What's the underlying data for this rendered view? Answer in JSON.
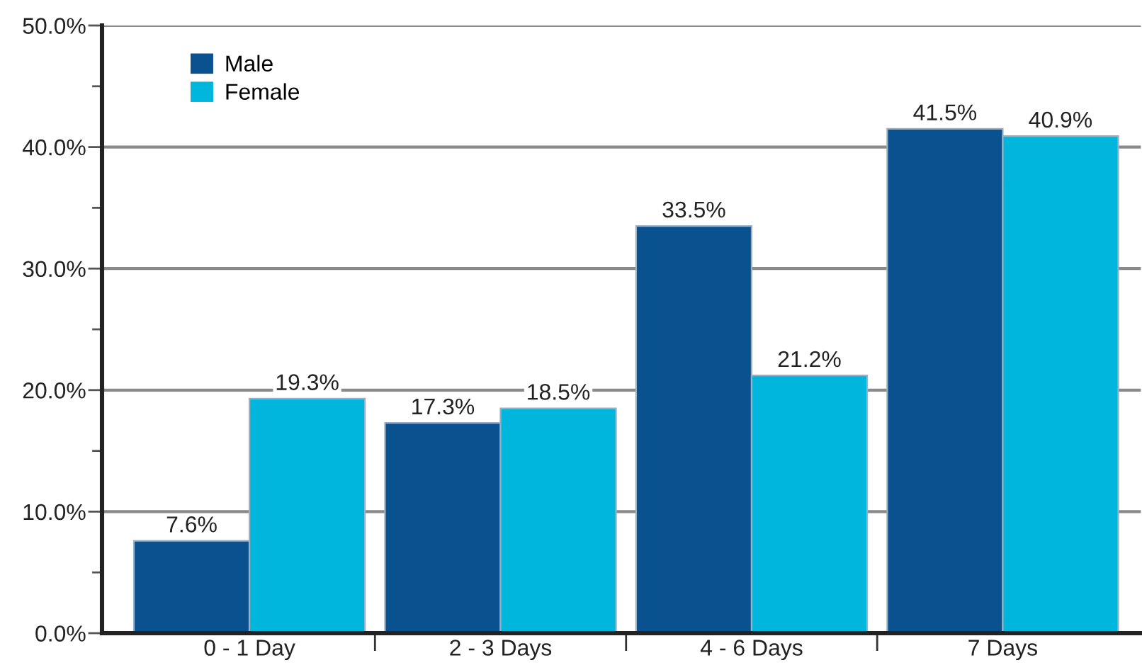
{
  "chart_data": {
    "type": "bar",
    "categories": [
      "0 - 1 Day",
      "2 - 3 Days",
      "4 - 6 Days",
      "7 Days"
    ],
    "series": [
      {
        "name": "Male",
        "color": "#0a5190",
        "values": [
          7.6,
          17.3,
          33.5,
          41.5
        ],
        "value_labels": [
          "7.6%",
          "17.3%",
          "33.5%",
          "41.5%"
        ]
      },
      {
        "name": "Female",
        "color": "#00b6dc",
        "values": [
          19.3,
          18.5,
          21.2,
          40.9
        ],
        "value_labels": [
          "19.3%",
          "18.5%",
          "21.2%",
          "40.9%"
        ]
      }
    ],
    "ylim": [
      0,
      50
    ],
    "yticks": [
      {
        "value": 0,
        "label": "0.0%"
      },
      {
        "value": 5,
        "label": null
      },
      {
        "value": 10,
        "label": "10.0%"
      },
      {
        "value": 15,
        "label": null
      },
      {
        "value": 20,
        "label": "20.0%"
      },
      {
        "value": 25,
        "label": null
      },
      {
        "value": 30,
        "label": "30.0%"
      },
      {
        "value": 35,
        "label": null
      },
      {
        "value": 40,
        "label": "40.0%"
      },
      {
        "value": 45,
        "label": null
      },
      {
        "value": 50,
        "label": "50.0%"
      }
    ],
    "grid": "y",
    "legend": "top left"
  }
}
